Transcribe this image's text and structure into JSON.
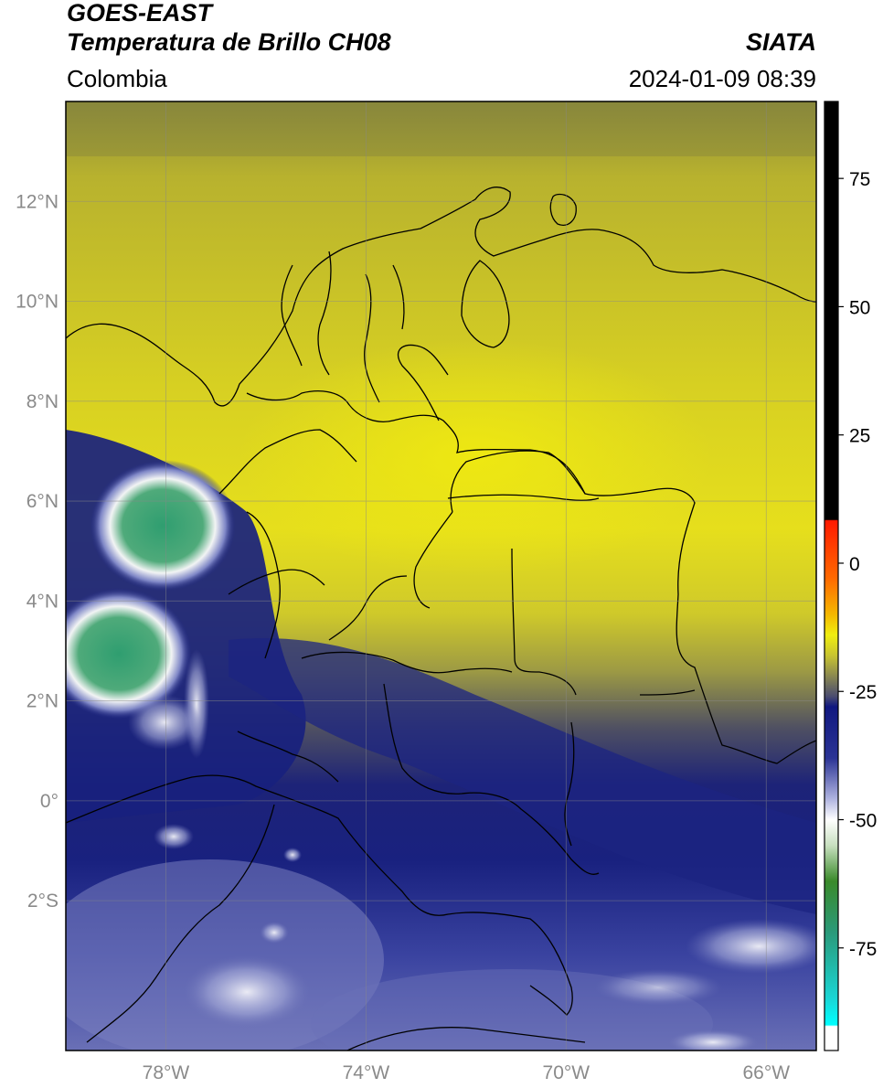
{
  "header": {
    "satellite": "GOES-EAST",
    "product": "Temperatura de Brillo CH08",
    "region": "Colombia",
    "source": "SIATA",
    "datetime": "2024-01-09 08:39"
  },
  "map": {
    "extent": {
      "lon": [
        -80,
        -65
      ],
      "lat": [
        -5,
        14
      ]
    },
    "lat_ticks": [
      {
        "value": 12,
        "label": "12°N"
      },
      {
        "value": 10,
        "label": "10°N"
      },
      {
        "value": 8,
        "label": "8°N"
      },
      {
        "value": 6,
        "label": "6°N"
      },
      {
        "value": 4,
        "label": "4°N"
      },
      {
        "value": 2,
        "label": "2°N"
      },
      {
        "value": 0,
        "label": "0°"
      },
      {
        "value": -2,
        "label": "2°S"
      }
    ],
    "lon_ticks": [
      {
        "value": -78,
        "label": "78°W"
      },
      {
        "value": -74,
        "label": "74°W"
      },
      {
        "value": -70,
        "label": "70°W"
      },
      {
        "value": -66,
        "label": "66°W"
      }
    ],
    "grid": true,
    "colors": {
      "yellow": "#e8e218",
      "olive": "#9c9a40",
      "navy": "#15207e",
      "slate": "#6a70b4",
      "white": "#f4f4f4",
      "green": "#2e9a6a",
      "border": "#000000"
    }
  },
  "colorbar": {
    "range": [
      -95,
      90
    ],
    "ticks": [
      {
        "value": 75,
        "label": "75"
      },
      {
        "value": 50,
        "label": "50"
      },
      {
        "value": 25,
        "label": "25"
      },
      {
        "value": 0,
        "label": "0"
      },
      {
        "value": -25,
        "label": "-25"
      },
      {
        "value": -50,
        "label": "-50"
      },
      {
        "value": -75,
        "label": "-75"
      }
    ]
  }
}
